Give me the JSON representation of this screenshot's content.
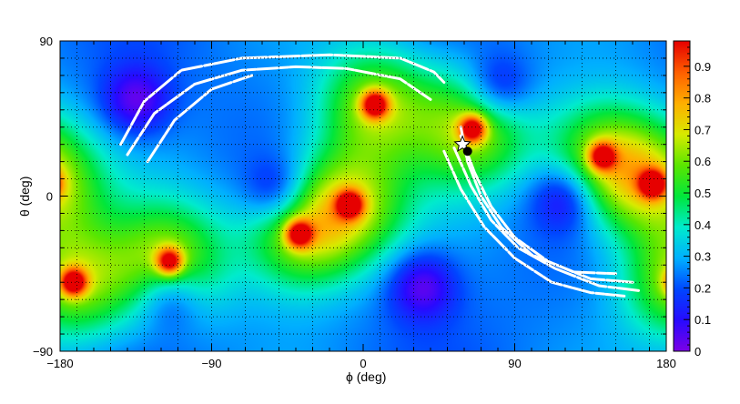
{
  "chart_data": {
    "type": "heatmap",
    "title": "",
    "xlabel": "ϕ (deg)",
    "ylabel": "θ (deg)",
    "xlim": [
      -180,
      180
    ],
    "ylim": [
      -90,
      90
    ],
    "zlim": [
      0,
      0.98
    ],
    "x_ticks": [
      -180,
      -90,
      0,
      90,
      180
    ],
    "y_ticks": [
      -90,
      0,
      90
    ],
    "z_ticks": [
      0,
      0.1,
      0.2,
      0.3,
      0.4,
      0.5,
      0.6,
      0.7,
      0.8,
      0.9
    ],
    "x_tick_labels": [
      "−180",
      "−90",
      "0",
      "90",
      "180"
    ],
    "y_tick_labels": [
      "−90",
      "0",
      "90"
    ],
    "z_tick_labels": [
      "0",
      "0.1",
      "0.2",
      "0.3",
      "0.4",
      "0.5",
      "0.6",
      "0.7",
      "0.8",
      "0.9"
    ],
    "grid": true,
    "colormap": "rainbow (purple → blue → cyan → green → yellow → orange → red)",
    "peaks": [
      {
        "phi": 7,
        "theta": 53,
        "value": 0.98
      },
      {
        "phi": -8,
        "theta": -5,
        "value": 0.95
      },
      {
        "phi": -38,
        "theta": -22,
        "value": 0.95
      },
      {
        "phi": -115,
        "theta": -38,
        "value": 0.95
      },
      {
        "phi": -172,
        "theta": -50,
        "value": 0.97
      },
      {
        "phi": 65,
        "theta": 39,
        "value": 0.95
      },
      {
        "phi": 142,
        "theta": 23,
        "value": 0.92
      },
      {
        "phi": 172,
        "theta": 7,
        "value": 0.97
      }
    ],
    "valleys": [
      {
        "phi": -50,
        "theta": 2,
        "value": 0.02
      },
      {
        "phi": 120,
        "theta": 0,
        "value": 0.03
      },
      {
        "phi": 35,
        "theta": -52,
        "value": 0.05
      },
      {
        "phi": -135,
        "theta": 55,
        "value": 0.05
      },
      {
        "phi": 80,
        "theta": 62,
        "value": 0.05
      },
      {
        "phi": -115,
        "theta": -58,
        "value": 0.08
      }
    ],
    "markers": [
      {
        "symbol": "star",
        "phi": 59,
        "theta": 30
      },
      {
        "symbol": "filled-circle",
        "phi": 62,
        "theta": 26
      }
    ],
    "arcs": [
      {
        "points": [
          [
            -144,
            30
          ],
          [
            -130,
            55
          ],
          [
            -108,
            73
          ],
          [
            -72,
            80
          ],
          [
            -20,
            82
          ],
          [
            22,
            80
          ],
          [
            42,
            72
          ],
          [
            48,
            66
          ]
        ]
      },
      {
        "points": [
          [
            -140,
            24
          ],
          [
            -124,
            48
          ],
          [
            -100,
            65
          ],
          [
            -72,
            73
          ],
          [
            -40,
            75
          ],
          [
            -10,
            74
          ],
          [
            22,
            68
          ],
          [
            40,
            56
          ]
        ]
      },
      {
        "points": [
          [
            -128,
            20
          ],
          [
            -112,
            44
          ],
          [
            -90,
            62
          ],
          [
            -66,
            70
          ]
        ]
      },
      {
        "points": [
          [
            58,
            40
          ],
          [
            62,
            20
          ],
          [
            70,
            0
          ],
          [
            82,
            -18
          ],
          [
            100,
            -34
          ],
          [
            125,
            -44
          ],
          [
            150,
            -45
          ]
        ]
      },
      {
        "points": [
          [
            58,
            35
          ],
          [
            66,
            14
          ],
          [
            76,
            -6
          ],
          [
            90,
            -24
          ],
          [
            110,
            -38
          ],
          [
            135,
            -48
          ],
          [
            160,
            -50
          ]
        ]
      },
      {
        "points": [
          [
            54,
            28
          ],
          [
            64,
            6
          ],
          [
            76,
            -14
          ],
          [
            92,
            -30
          ],
          [
            114,
            -42
          ],
          [
            140,
            -52
          ],
          [
            165,
            -55
          ]
        ]
      },
      {
        "points": [
          [
            48,
            26
          ],
          [
            58,
            4
          ],
          [
            72,
            -18
          ],
          [
            90,
            -36
          ],
          [
            112,
            -50
          ],
          [
            135,
            -56
          ],
          [
            155,
            -58
          ]
        ]
      }
    ]
  }
}
